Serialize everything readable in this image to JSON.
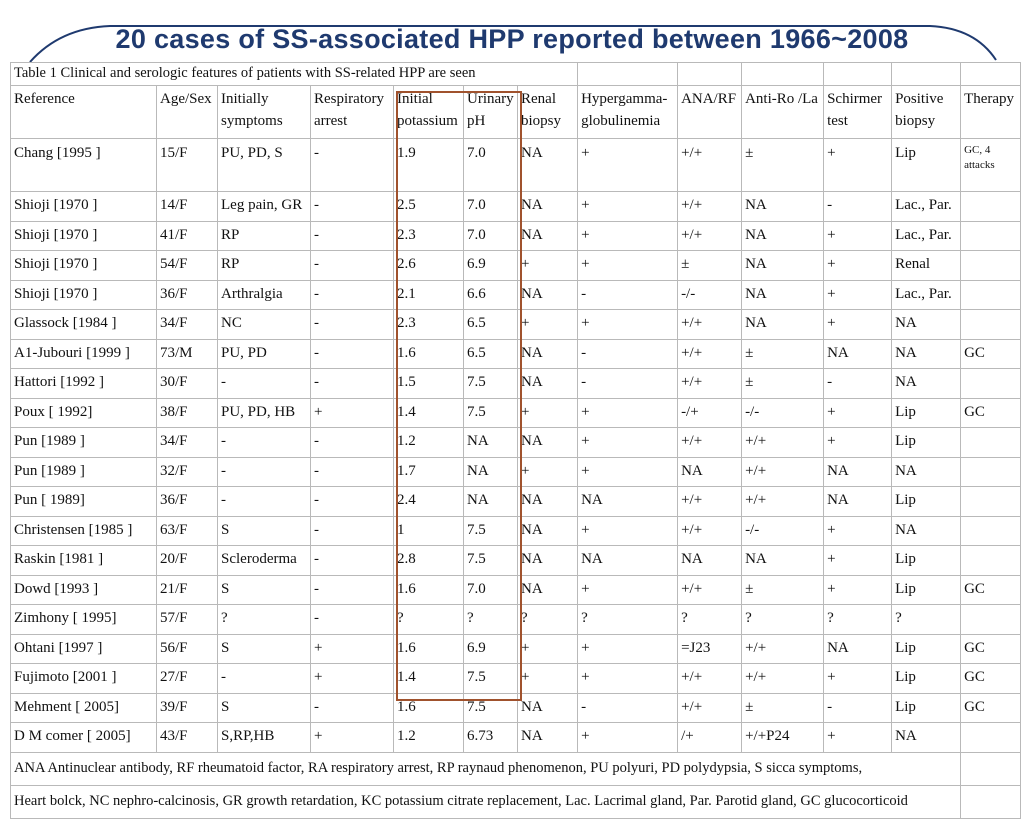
{
  "title": "20 cases of SS-associated HPP reported between 1966~2008",
  "table": {
    "caption": "Table 1 Clinical and serologic features of patients with SS-related HPP are seen",
    "headers": [
      [
        "Reference",
        ""
      ],
      [
        "Age/Sex",
        ""
      ],
      [
        "Initially",
        "symptoms"
      ],
      [
        "Respiratory",
        "arrest"
      ],
      [
        "Initial",
        "potassium"
      ],
      [
        "Urinary",
        "pH"
      ],
      [
        "Renal",
        "biopsy"
      ],
      [
        "Hypergamma-",
        "globulinemia"
      ],
      [
        "ANA/RF",
        ""
      ],
      [
        "Anti-Ro /La",
        ""
      ],
      [
        "Schirmer",
        "test"
      ],
      [
        "Positive",
        "biopsy"
      ],
      [
        "Therapy",
        ""
      ]
    ],
    "rows": [
      [
        "Chang [1995 ]",
        "15/F",
        "PU, PD, S",
        "-",
        "1.9",
        "7.0",
        "NA",
        "+",
        "+/+",
        "±",
        "+",
        "Lip",
        "GC, 4 attacks"
      ],
      [
        "Shioji [1970 ]",
        "14/F",
        "Leg pain, GR",
        "-",
        "2.5",
        "7.0",
        "NA",
        "+",
        "+/+",
        "NA",
        "-",
        "Lac., Par.",
        ""
      ],
      [
        "Shioji [1970 ]",
        "41/F",
        "RP",
        "-",
        "2.3",
        "7.0",
        "NA",
        "+",
        "+/+",
        "NA",
        "+",
        "Lac., Par.",
        ""
      ],
      [
        "Shioji [1970 ]",
        "54/F",
        "RP",
        "-",
        "2.6",
        "6.9",
        "+",
        "+",
        "±",
        "NA",
        "+",
        "Renal",
        ""
      ],
      [
        "Shioji [1970 ]",
        "36/F",
        "Arthralgia",
        "-",
        "2.1",
        "6.6",
        "NA",
        "-",
        "-/-",
        "NA",
        "+",
        "Lac., Par.",
        ""
      ],
      [
        "Glassock [1984 ]",
        "34/F",
        "NC",
        "-",
        "2.3",
        "6.5",
        "+",
        "+",
        "+/+",
        "NA",
        "+",
        "NA",
        ""
      ],
      [
        "A1-Jubouri [1999 ]",
        "73/M",
        "PU, PD",
        "-",
        "1.6",
        "6.5",
        "NA",
        "-",
        "+/+",
        "±",
        "NA",
        "NA",
        "GC"
      ],
      [
        "Hattori [1992 ]",
        "30/F",
        "-",
        "-",
        "1.5",
        "7.5",
        "NA",
        "-",
        "+/+",
        "±",
        "-",
        "NA",
        ""
      ],
      [
        "Poux [ 1992]",
        "38/F",
        "PU, PD, HB",
        "+",
        "1.4",
        "7.5",
        "+",
        "+",
        "-/+",
        "-/-",
        "+",
        "Lip",
        "GC"
      ],
      [
        "Pun [1989 ]",
        "34/F",
        "-",
        "-",
        "1.2",
        "NA",
        "NA",
        "+",
        "+/+",
        "+/+",
        "+",
        "Lip",
        ""
      ],
      [
        "Pun [1989 ]",
        "32/F",
        "-",
        "-",
        "1.7",
        "NA",
        "+",
        "+",
        "NA",
        "+/+",
        "NA",
        "NA",
        ""
      ],
      [
        "Pun [ 1989]",
        "36/F",
        "-",
        "-",
        "2.4",
        "NA",
        "NA",
        "NA",
        "+/+",
        "+/+",
        "NA",
        "Lip",
        ""
      ],
      [
        "Christensen [1985 ]",
        "63/F",
        "S",
        "-",
        "1",
        "7.5",
        "NA",
        "+",
        "+/+",
        "-/-",
        "+",
        "NA",
        ""
      ],
      [
        "Raskin [1981 ]",
        "20/F",
        "Scleroderma",
        "-",
        "2.8",
        "7.5",
        "NA",
        "NA",
        "NA",
        "NA",
        "+",
        "Lip",
        ""
      ],
      [
        "Dowd [1993 ]",
        "21/F",
        "S",
        "-",
        "1.6",
        "7.0",
        "NA",
        "+",
        "+/+",
        "±",
        "+",
        "Lip",
        "GC"
      ],
      [
        "Zimhony [ 1995]",
        "57/F",
        "?",
        "-",
        "?",
        "?",
        "?",
        "?",
        "?",
        "?",
        "?",
        "?",
        ""
      ],
      [
        "Ohtani [1997 ]",
        "56/F",
        "S",
        "+",
        "1.6",
        "6.9",
        "+",
        "+",
        "=J23",
        "+/+",
        "NA",
        "Lip",
        "GC"
      ],
      [
        "Fujimoto [2001 ]",
        "27/F",
        "-",
        "+",
        "1.4",
        "7.5",
        "+",
        "+",
        "+/+",
        "+/+",
        "+",
        "Lip",
        "GC"
      ],
      [
        "Mehment  [ 2005]",
        "39/F",
        "S",
        "-",
        "1.6",
        "7.5",
        "NA",
        "-",
        "+/+",
        "±",
        "-",
        "Lip",
        "GC"
      ],
      [
        "D M comer  [ 2005]",
        "43/F",
        "S,RP,HB",
        "+",
        "1.2",
        "6.73",
        "NA",
        "+",
        "/+",
        "+/+P24",
        "+",
        "NA",
        ""
      ]
    ],
    "footnotes": [
      "ANA Antinuclear antibody, RF rheumatoid factor, RA respiratory arrest, RP raynaud phenomenon, PU polyuri, PD polydypsia, S sicca symptoms,",
      "Heart bolck, NC nephro-calcinosis, GR growth retardation, KC potassium citrate replacement, Lac. Lacrimal gland, Par. Parotid gland, GC glucocorticoid"
    ]
  },
  "colors": {
    "title": "#1f3a6f",
    "highlight_box": "#a0522d",
    "grid": "#b9b9b9"
  }
}
